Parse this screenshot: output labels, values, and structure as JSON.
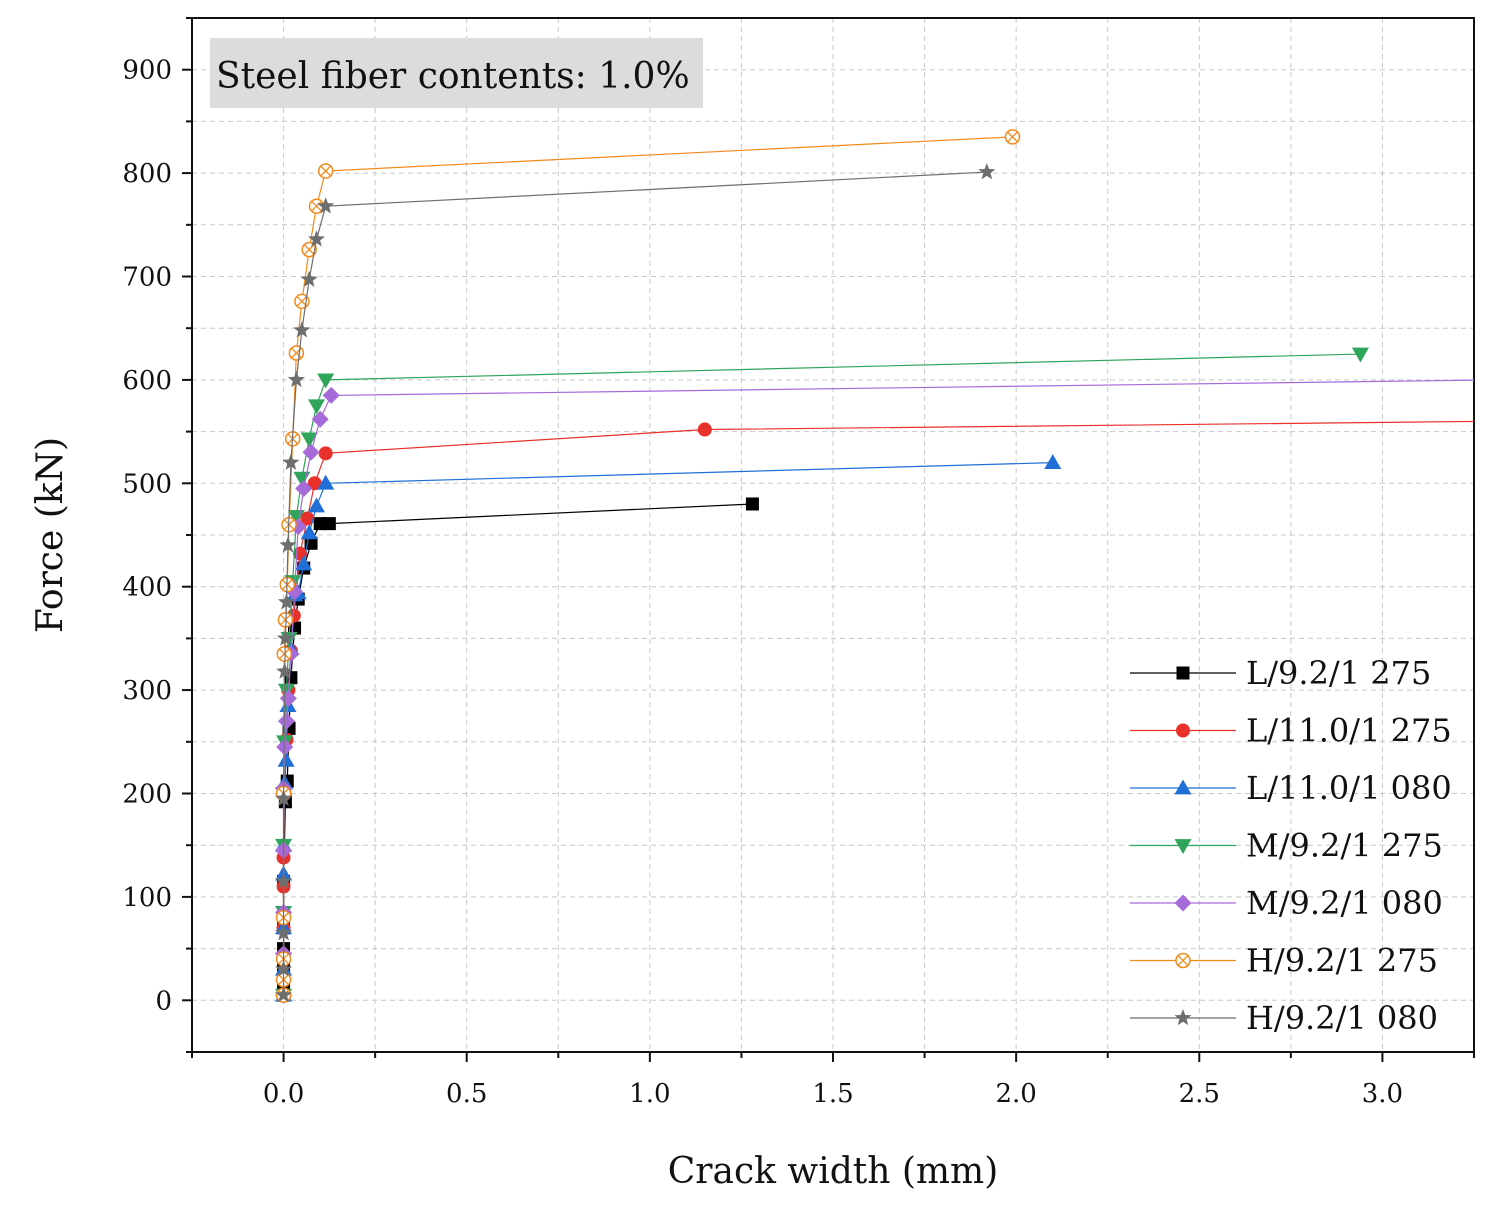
{
  "chart_data": {
    "type": "scatter",
    "annotation": "Steel fiber contents: 1.0%",
    "xlabel": "Crack width (mm)",
    "ylabel": "Force (kN)",
    "xlim": [
      -0.25,
      3.25
    ],
    "ylim": [
      -50,
      950
    ],
    "xticks": [
      "0.0",
      "0.5",
      "1.0",
      "1.5",
      "2.0",
      "2.5",
      "3.0"
    ],
    "yticks": [
      "0",
      "100",
      "200",
      "300",
      "400",
      "500",
      "600",
      "700",
      "800",
      "900"
    ],
    "grid": true,
    "legend_position": "bottom-right",
    "series": [
      {
        "name": "L/9.2/1 275",
        "color": "#000000",
        "marker": "square",
        "x": [
          0,
          0,
          0,
          0,
          0,
          0,
          0.005,
          0.01,
          0.015,
          0.02,
          0.03,
          0.04,
          0.055,
          0.075,
          0.1,
          0.125,
          1.28
        ],
        "y": [
          5,
          15,
          30,
          50,
          70,
          115,
          192,
          212,
          263,
          312,
          360,
          388,
          418,
          442,
          461,
          461,
          480
        ]
      },
      {
        "name": "L/11.0/1 275",
        "color": "#e8312b",
        "marker": "circle",
        "x": [
          0,
          0,
          0,
          0,
          0,
          0,
          0.003,
          0.008,
          0.013,
          0.02,
          0.028,
          0.045,
          0.065,
          0.085,
          0.115,
          1.15,
          3.3
        ],
        "y": [
          5,
          20,
          40,
          70,
          110,
          138,
          200,
          252,
          300,
          338,
          372,
          432,
          466,
          500,
          529,
          552,
          560
        ]
      },
      {
        "name": "L/11.0/1 080",
        "color": "#1f6fd6",
        "marker": "triangle-up",
        "x": [
          0,
          0,
          0,
          0,
          0,
          0.003,
          0.007,
          0.012,
          0.02,
          0.03,
          0.04,
          0.055,
          0.07,
          0.09,
          0.115,
          2.1
        ],
        "y": [
          5,
          30,
          70,
          122,
          150,
          210,
          232,
          285,
          340,
          392,
          394,
          422,
          452,
          478,
          500,
          520
        ]
      },
      {
        "name": "M/9.2/1 275",
        "color": "#2ea55a",
        "marker": "triangle-down",
        "x": [
          0,
          0,
          0,
          0,
          0,
          0.003,
          0.008,
          0.015,
          0.025,
          0.035,
          0.05,
          0.07,
          0.09,
          0.115,
          2.94
        ],
        "y": [
          5,
          40,
          85,
          150,
          200,
          250,
          300,
          350,
          405,
          468,
          505,
          543,
          575,
          600,
          625
        ]
      },
      {
        "name": "M/9.2/1 080",
        "color": "#a66ad9",
        "marker": "diamond",
        "x": [
          0,
          0,
          0,
          0,
          0,
          0.003,
          0.008,
          0.013,
          0.02,
          0.03,
          0.04,
          0.055,
          0.075,
          0.1,
          0.13,
          3.3
        ],
        "y": [
          5,
          45,
          85,
          145,
          205,
          245,
          270,
          292,
          335,
          395,
          458,
          495,
          530,
          562,
          585,
          600
        ]
      },
      {
        "name": "H/9.2/1 275",
        "color": "#f28a1c",
        "marker": "circle-x",
        "x": [
          0,
          0,
          0,
          0,
          0,
          0.002,
          0.005,
          0.01,
          0.015,
          0.025,
          0.035,
          0.05,
          0.07,
          0.09,
          0.115,
          1.99
        ],
        "y": [
          5,
          20,
          40,
          80,
          200,
          335,
          368,
          402,
          460,
          543,
          626,
          676,
          726,
          768,
          802,
          835
        ]
      },
      {
        "name": "H/9.2/1 080",
        "color": "#6e6e6e",
        "marker": "star",
        "x": [
          0,
          0,
          0,
          0,
          0,
          0.003,
          0.005,
          0.008,
          0.012,
          0.02,
          0.035,
          0.05,
          0.07,
          0.09,
          0.115,
          1.92
        ],
        "y": [
          5,
          30,
          65,
          115,
          195,
          318,
          350,
          385,
          440,
          520,
          600,
          648,
          697,
          736,
          768,
          801
        ]
      }
    ]
  }
}
